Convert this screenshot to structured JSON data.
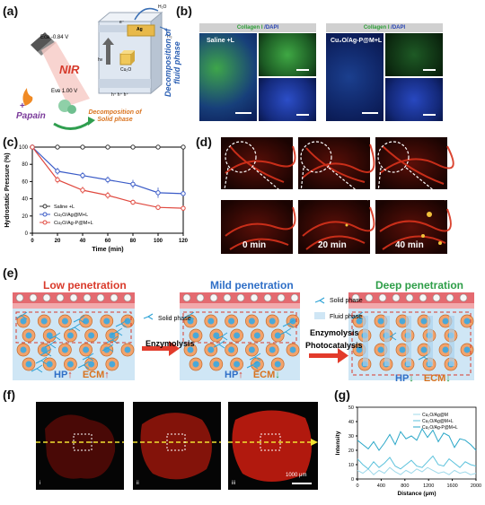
{
  "labels": {
    "a": "(a)",
    "b": "(b)",
    "c": "(c)",
    "d": "(d)",
    "e": "(e)",
    "f": "(f)",
    "g": "(g)"
  },
  "panel_a": {
    "ecb": "Eᴄʙ -0.84 V",
    "evb": "Eᴠʙ 1.00 V",
    "nir": "NIR",
    "papain": "Papain",
    "plus": "+",
    "hv": "hν",
    "e": "e⁻",
    "h": "h⁺ h⁺ h⁺",
    "ag": "Ag",
    "cu2o": "Cu₂O",
    "h2o": "H₂O",
    "h2": "H₂",
    "fluid": "Decomposition of fluid phase",
    "solid": "Decomposition of Solid phase"
  },
  "panel_b": {
    "left_header_green": "Collagen I",
    "left_header_blue": " /DAPI",
    "left_label": "Saline +L",
    "right_header_green": "Collagen I",
    "right_header_blue": " /DAPI",
    "right_label": "Cu₂O/Ag-P@M+L"
  },
  "panel_d": {
    "t0": "0 min",
    "t20": "20 min",
    "t40": "40 min"
  },
  "panel_e": {
    "title_low": "Low penetration",
    "title_mild": "Mild penetration",
    "title_deep": "Deep penetration",
    "legend_solid": "Solid phase",
    "legend_fluid": "Fluid phase",
    "step1": "Enzymolysis",
    "step2a": "Enzymolysis",
    "step2b": "Photocatalysis",
    "hp": "HP",
    "ecm": "ECM",
    "up": "↑",
    "down": "↓"
  },
  "panel_f": {
    "i": "i",
    "ii": "ii",
    "iii": "iii",
    "scale": "1000 μm"
  },
  "colors": {
    "saline": "#333333",
    "cuo_m": "#3a5bc7",
    "cuo_p": "#e0493f",
    "g1": "#9fd9ea",
    "g2": "#5cc2dc",
    "g3": "#2aa7c8"
  },
  "chart_data": [
    {
      "type": "line",
      "xlabel": "Time (min)",
      "ylabel": "Hydrostatic Pressure (%)",
      "xlim": [
        0,
        120
      ],
      "ylim": [
        0,
        100
      ],
      "xticks": [
        "0",
        "20",
        "40",
        "60",
        "80",
        "100",
        "120"
      ],
      "yticks": [
        "0",
        "20",
        "40",
        "60",
        "80",
        "100"
      ],
      "x": [
        0,
        20,
        40,
        60,
        80,
        100,
        120
      ],
      "legend_position": "lower-left",
      "series": [
        {
          "name": "Saline +L",
          "values": [
            100,
            100,
            100,
            100,
            100,
            100,
            100
          ],
          "err": [
            0,
            1,
            1,
            1,
            1,
            1,
            1
          ]
        },
        {
          "name": "Cu₂O/Ag@M+L",
          "values": [
            100,
            72,
            67,
            62,
            57,
            47,
            46
          ],
          "err": [
            0,
            4,
            4,
            4,
            5,
            6,
            3
          ]
        },
        {
          "name": "Cu₂O/Ag-P@M+L",
          "values": [
            100,
            62,
            50,
            44,
            36,
            30,
            29
          ],
          "err": [
            0,
            4,
            4,
            4,
            3,
            3,
            3
          ]
        }
      ]
    },
    {
      "type": "line",
      "xlabel": "Distance (μm)",
      "ylabel": "Intensity",
      "xlim": [
        0,
        2000
      ],
      "ylim": [
        0,
        50
      ],
      "xticks": [
        "0",
        "400",
        "800",
        "1200",
        "1600",
        "2000"
      ],
      "yticks": [
        "0",
        "10",
        "20",
        "30",
        "40",
        "50"
      ],
      "legend_position": "top-right",
      "series": [
        {
          "name": "Cu₂O/Ag@M",
          "values": [
            6,
            4,
            7,
            3,
            6,
            4,
            8,
            5,
            3,
            6,
            4,
            7,
            5,
            8,
            6,
            4,
            5,
            3,
            6,
            4,
            5,
            3,
            4
          ]
        },
        {
          "name": "Cu₂O/Ag@M+L",
          "values": [
            14,
            10,
            7,
            12,
            8,
            11,
            15,
            9,
            7,
            10,
            13,
            9,
            8,
            12,
            16,
            10,
            9,
            14,
            11,
            8,
            12,
            10,
            9
          ]
        },
        {
          "name": "Cu₂O/Ag-P@M+L",
          "values": [
            27,
            24,
            21,
            26,
            20,
            25,
            31,
            24,
            33,
            28,
            30,
            27,
            35,
            29,
            34,
            26,
            32,
            30,
            22,
            28,
            27,
            24,
            20
          ]
        }
      ]
    }
  ]
}
